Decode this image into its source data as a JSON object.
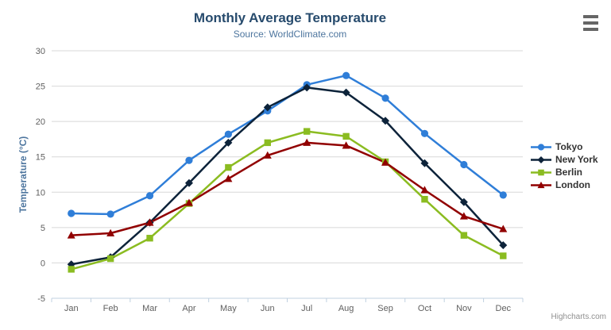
{
  "header": {
    "title": "Monthly Average Temperature",
    "subtitle": "Source: WorldClimate.com"
  },
  "credits": "Highcharts.com",
  "chart_data": {
    "type": "line",
    "title": "Monthly Average Temperature",
    "subtitle": "Source: WorldClimate.com",
    "categories": [
      "Jan",
      "Feb",
      "Mar",
      "Apr",
      "May",
      "Jun",
      "Jul",
      "Aug",
      "Sep",
      "Oct",
      "Nov",
      "Dec"
    ],
    "series": [
      {
        "name": "Tokyo",
        "color": "#2f7ed8",
        "symbol": "circle",
        "values": [
          7.0,
          6.9,
          9.5,
          14.5,
          18.2,
          21.5,
          25.2,
          26.5,
          23.3,
          18.3,
          13.9,
          9.6
        ]
      },
      {
        "name": "New York",
        "color": "#0d233a",
        "symbol": "diamond",
        "values": [
          -0.2,
          0.8,
          5.7,
          11.3,
          17.0,
          22.0,
          24.8,
          24.1,
          20.1,
          14.1,
          8.6,
          2.5
        ]
      },
      {
        "name": "Berlin",
        "color": "#8bbc21",
        "symbol": "square",
        "values": [
          -0.9,
          0.6,
          3.5,
          8.4,
          13.5,
          17.0,
          18.6,
          17.9,
          14.3,
          9.0,
          3.9,
          1.0
        ]
      },
      {
        "name": "London",
        "color": "#910000",
        "symbol": "triangle",
        "values": [
          3.9,
          4.2,
          5.7,
          8.5,
          11.9,
          15.2,
          17.0,
          16.6,
          14.2,
          10.3,
          6.6,
          4.8
        ]
      }
    ],
    "xlabel": "",
    "ylabel": "Temperature (°C)",
    "ylim": [
      -5,
      30
    ],
    "ytick_step": 5,
    "yticks": [
      -5,
      0,
      5,
      10,
      15,
      20,
      25,
      30
    ],
    "grid": true,
    "legend_position": "right"
  },
  "theme": {
    "title_color": "#274b6d",
    "subtitle_color": "#4d759e",
    "axis_title_color": "#4d759e",
    "tick_label_color": "#606060",
    "grid_color": "#d8d8d8",
    "axis_line_color": "#c0d0e0",
    "legend_text_color": "#333333",
    "credits_color": "#909090",
    "menu_icon_color": "#666666"
  }
}
